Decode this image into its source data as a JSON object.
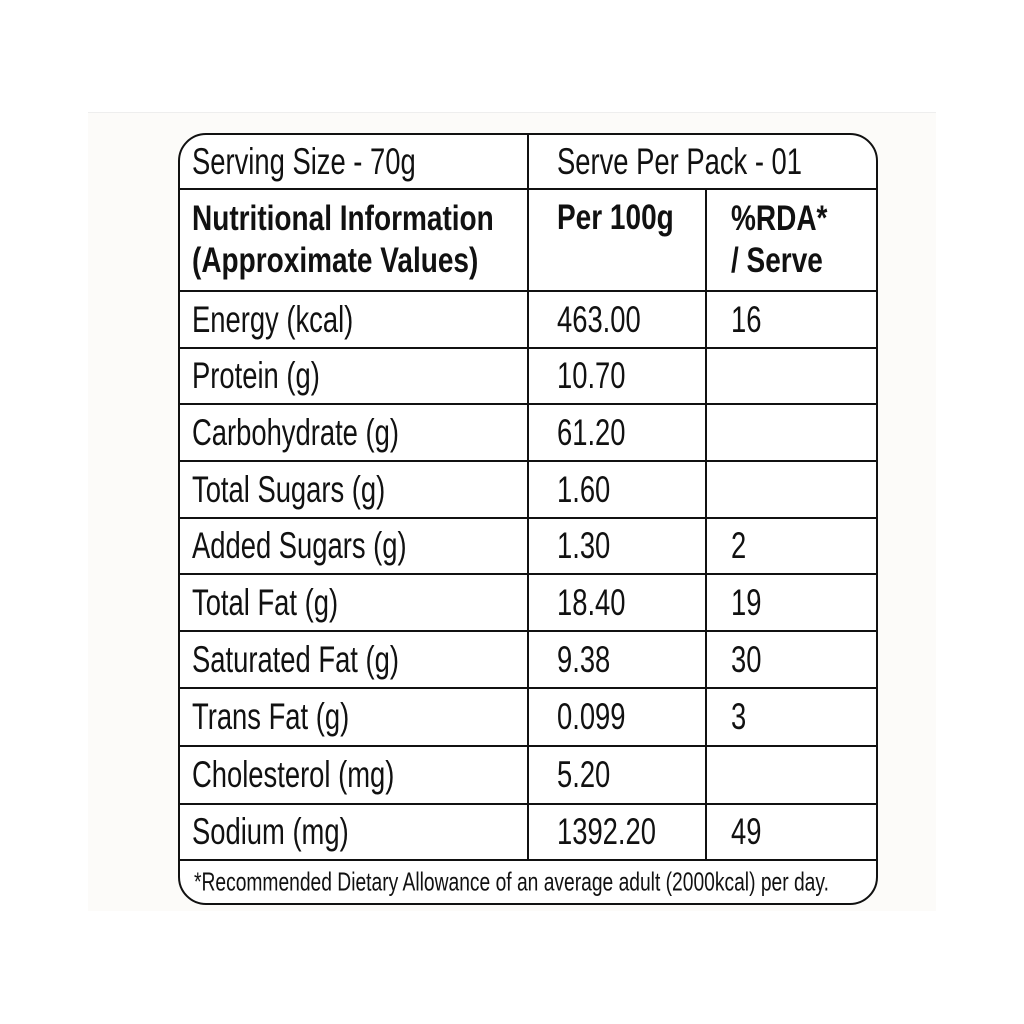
{
  "header": {
    "serving_size": "Serving Size - 70g",
    "serve_per_pack": "Serve Per Pack - 01"
  },
  "columns": {
    "nutrient_line1": "Nutritional Information",
    "nutrient_line2": "(Approximate Values)",
    "per100": "Per 100g",
    "rda_line1": "%RDA*",
    "rda_line2": "/ Serve"
  },
  "rows": [
    {
      "name": "Energy (kcal)",
      "per100": "463.00",
      "rda": "16"
    },
    {
      "name": "Protein (g)",
      "per100": "10.70",
      "rda": ""
    },
    {
      "name": "Carbohydrate (g)",
      "per100": "61.20",
      "rda": ""
    },
    {
      "name": "Total Sugars (g)",
      "per100": "1.60",
      "rda": ""
    },
    {
      "name": "Added Sugars (g)",
      "per100": "1.30",
      "rda": "2"
    },
    {
      "name": "Total Fat (g)",
      "per100": "18.40",
      "rda": "19"
    },
    {
      "name": "Saturated Fat (g)",
      "per100": "9.38",
      "rda": "30"
    },
    {
      "name": "Trans Fat (g)",
      "per100": "0.099",
      "rda": "3"
    },
    {
      "name": "Cholesterol (mg)",
      "per100": "5.20",
      "rda": ""
    },
    {
      "name": "Sodium (mg)",
      "per100": "1392.20",
      "rda": "49"
    }
  ],
  "footnote": "*Recommended Dietary Allowance of an average adult (2000kcal) per day."
}
